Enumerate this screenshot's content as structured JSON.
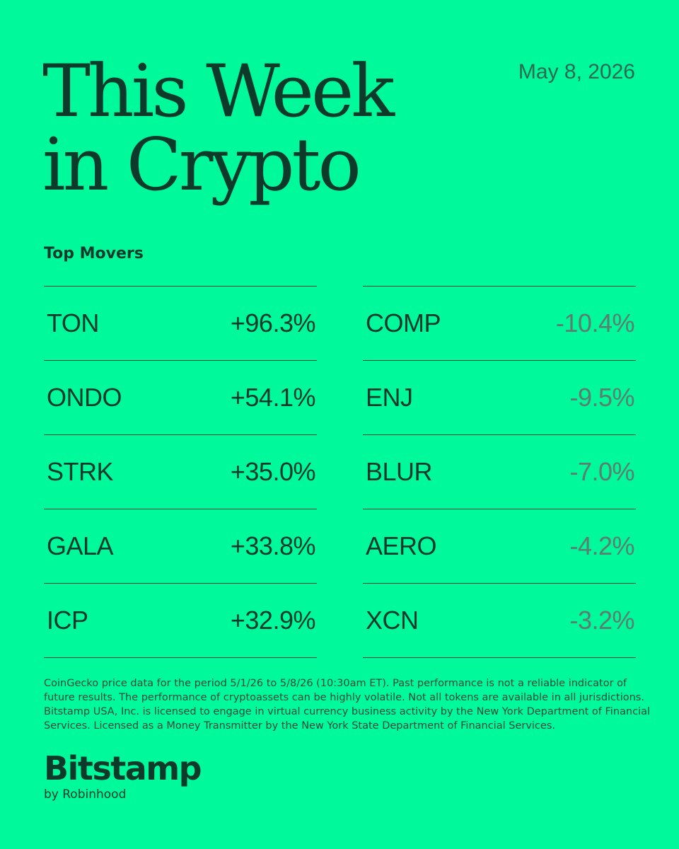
{
  "header": {
    "title_line1": "This Week",
    "title_line2": "in Crypto",
    "date": "May 8, 2026"
  },
  "section_label": "Top Movers",
  "gainers": [
    {
      "ticker": "TON",
      "change": "+96.3%"
    },
    {
      "ticker": "ONDO",
      "change": "+54.1%"
    },
    {
      "ticker": "STRK",
      "change": "+35.0%"
    },
    {
      "ticker": "GALA",
      "change": "+33.8%"
    },
    {
      "ticker": "ICP",
      "change": "+32.9%"
    }
  ],
  "losers": [
    {
      "ticker": "COMP",
      "change": "-10.4%"
    },
    {
      "ticker": "ENJ",
      "change": "-9.5%"
    },
    {
      "ticker": "BLUR",
      "change": "-7.0%"
    },
    {
      "ticker": "AERO",
      "change": "-4.2%"
    },
    {
      "ticker": "XCN",
      "change": "-3.2%"
    }
  ],
  "disclaimer": "CoinGecko price data for the period 5/1/26 to 5/8/26 (10:30am ET). Past performance is not a reliable indicator of future results. The performance of cryptoassets can be highly volatile. Not all tokens are available in all jurisdictions. Bitstamp USA, Inc. is licensed to engage in virtual currency business activity by the New York Department of Financial Services. Licensed as a Money Transmitter by the New York State Department of Financial Services.",
  "brand": {
    "name": "Bitstamp",
    "tagline": "by Robinhood"
  },
  "colors": {
    "background": "#00F99A",
    "text_dark": "#0E3A2B",
    "negative_text": "#5C7D70"
  }
}
